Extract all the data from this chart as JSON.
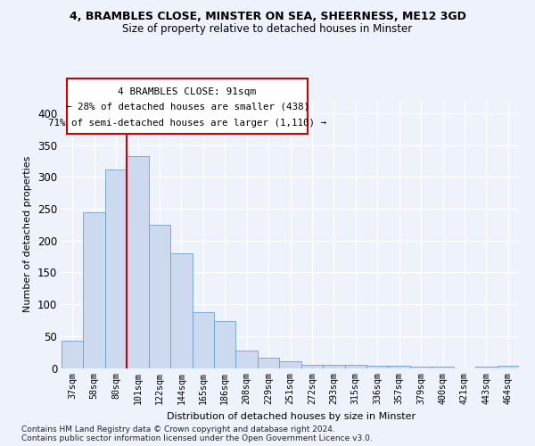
{
  "title1": "4, BRAMBLES CLOSE, MINSTER ON SEA, SHEERNESS, ME12 3GD",
  "title2": "Size of property relative to detached houses in Minster",
  "xlabel": "Distribution of detached houses by size in Minster",
  "ylabel": "Number of detached properties",
  "categories": [
    "37sqm",
    "58sqm",
    "80sqm",
    "101sqm",
    "122sqm",
    "144sqm",
    "165sqm",
    "186sqm",
    "208sqm",
    "229sqm",
    "251sqm",
    "272sqm",
    "293sqm",
    "315sqm",
    "336sqm",
    "357sqm",
    "379sqm",
    "400sqm",
    "421sqm",
    "443sqm",
    "464sqm"
  ],
  "bar_heights": [
    43,
    245,
    312,
    332,
    225,
    180,
    88,
    73,
    27,
    16,
    10,
    5,
    5,
    5,
    3,
    3,
    2,
    2,
    0,
    2,
    3
  ],
  "bar_color": "#ccd9ef",
  "bar_edge_color": "#6b9fd4",
  "vline_x": 2.5,
  "vline_color": "#cc0000",
  "annotation_line1": "4 BRAMBLES CLOSE: 91sqm",
  "annotation_line2": "← 28% of detached houses are smaller (438)",
  "annotation_line3": "71% of semi-detached houses are larger (1,110) →",
  "annotation_box_color": "#ffffff",
  "annotation_box_edge": "#cc0000",
  "ylim": [
    0,
    420
  ],
  "yticks": [
    0,
    50,
    100,
    150,
    200,
    250,
    300,
    350,
    400
  ],
  "footer1": "Contains HM Land Registry data © Crown copyright and database right 2024.",
  "footer2": "Contains public sector information licensed under the Open Government Licence v3.0.",
  "bg_color": "#eef2fb",
  "plot_bg_color": "#eef2fb"
}
